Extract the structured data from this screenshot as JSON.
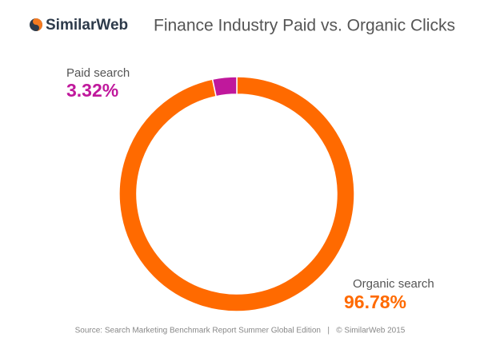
{
  "logo": "SimilarWeb",
  "chart_data": {
    "type": "donut",
    "title": "Finance Industry Paid vs. Organic Clicks",
    "categories": [
      "Organic search",
      "Paid search"
    ],
    "values": [
      96.78,
      3.32
    ],
    "value_labels": [
      "96.78%",
      "3.32%"
    ],
    "colors": [
      "#ff6a00",
      "#c0189c"
    ]
  },
  "source": "Source: Search Marketing Benchmark Report Summer Global Edition   |   © SimilarWeb 2015"
}
